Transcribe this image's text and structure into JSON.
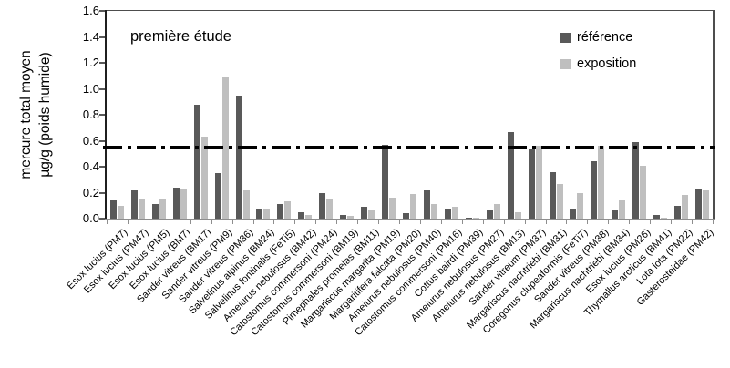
{
  "figure": {
    "annotation": "première étude",
    "y_axis_title_line1": "mercure total moyen",
    "y_axis_title_line2": "µg/g (poids humide)"
  },
  "chart_data": {
    "type": "bar",
    "title": "première étude",
    "ylabel": "mercure total moyen µg/g (poids humide)",
    "xlabel": "",
    "ylim": [
      0,
      1.6
    ],
    "ytick_step": 0.2,
    "ytick_labels": [
      "0.0",
      "0.2",
      "0.4",
      "0.6",
      "0.8",
      "1.0",
      "1.2",
      "1.4",
      "1.6"
    ],
    "grid": false,
    "legend_position": "inside-top-right",
    "reference_line": {
      "value": 0.55,
      "style": "dash-dot",
      "color": "#000000",
      "thickness_px": 4
    },
    "categories": [
      "Esox lucius (PM7)",
      "Esox lucius (PM47)",
      "Esox lucius (PM5)",
      "Esox lucius (BM7)",
      "Sander vitreus (BM17)",
      "Sander vitreus (PM9)",
      "Sander vitreus (PM36)",
      "Salvelinus alpinus (BM24)",
      "Salvelinus fontinalis (FeTi5)",
      "Ameiurus nebulosus (BM42)",
      "Catostomus commersoni (PM24)",
      "Catostomus commersoni (BM19)",
      "Pimephales promelas (BM11)",
      "Margariscus margarita (PM19)",
      "Margaritifera falcata (PM20)",
      "Ameiurus nebulosus (PM40)",
      "Catostomus commersoni (PM16)",
      "Cottus bairdi (PM39)",
      "Ameiurus nebulosus (PM27)",
      "Ameiurus nebulosus (BM13)",
      "Sander vitreum (PM37)",
      "Margariscus nachtriebi (BM31)",
      "Coregonus clupeaformis (FeTi7)",
      "Sander vitreus (PM38)",
      "Margariscus nachtriebi (BM34)",
      "Esox lucius (PM26)",
      "Thymallus arcticus (BM41)",
      "Lota lota (PM22)",
      "Gasterosteidae (PM42)"
    ],
    "series": [
      {
        "name": "référence",
        "color": "#595959",
        "values": [
          0.14,
          0.22,
          0.11,
          0.24,
          0.88,
          0.35,
          0.95,
          0.08,
          0.11,
          0.05,
          0.2,
          0.03,
          0.09,
          0.57,
          0.04,
          0.22,
          0.08,
          0.01,
          0.07,
          0.67,
          0.53,
          0.36,
          0.08,
          0.44,
          0.07,
          0.59,
          0.03,
          0.1,
          0.23
        ]
      },
      {
        "name": "exposition",
        "color": "#bfbfbf",
        "values": [
          0.1,
          0.15,
          0.15,
          0.23,
          0.63,
          1.09,
          0.22,
          0.08,
          0.13,
          0.03,
          0.15,
          0.02,
          0.07,
          0.16,
          0.19,
          0.11,
          0.09,
          0.01,
          0.11,
          0.05,
          0.56,
          0.27,
          0.2,
          0.56,
          0.14,
          0.41,
          0.01,
          0.18,
          0.22
        ]
      }
    ]
  },
  "style": {
    "background": "#ffffff",
    "axis_color_left": "#1f1f1f",
    "axis_color_bottom": "#8e8e8e",
    "border_color": "#4d4d4d",
    "tick_color": "#595959",
    "text_color": "#000000"
  }
}
